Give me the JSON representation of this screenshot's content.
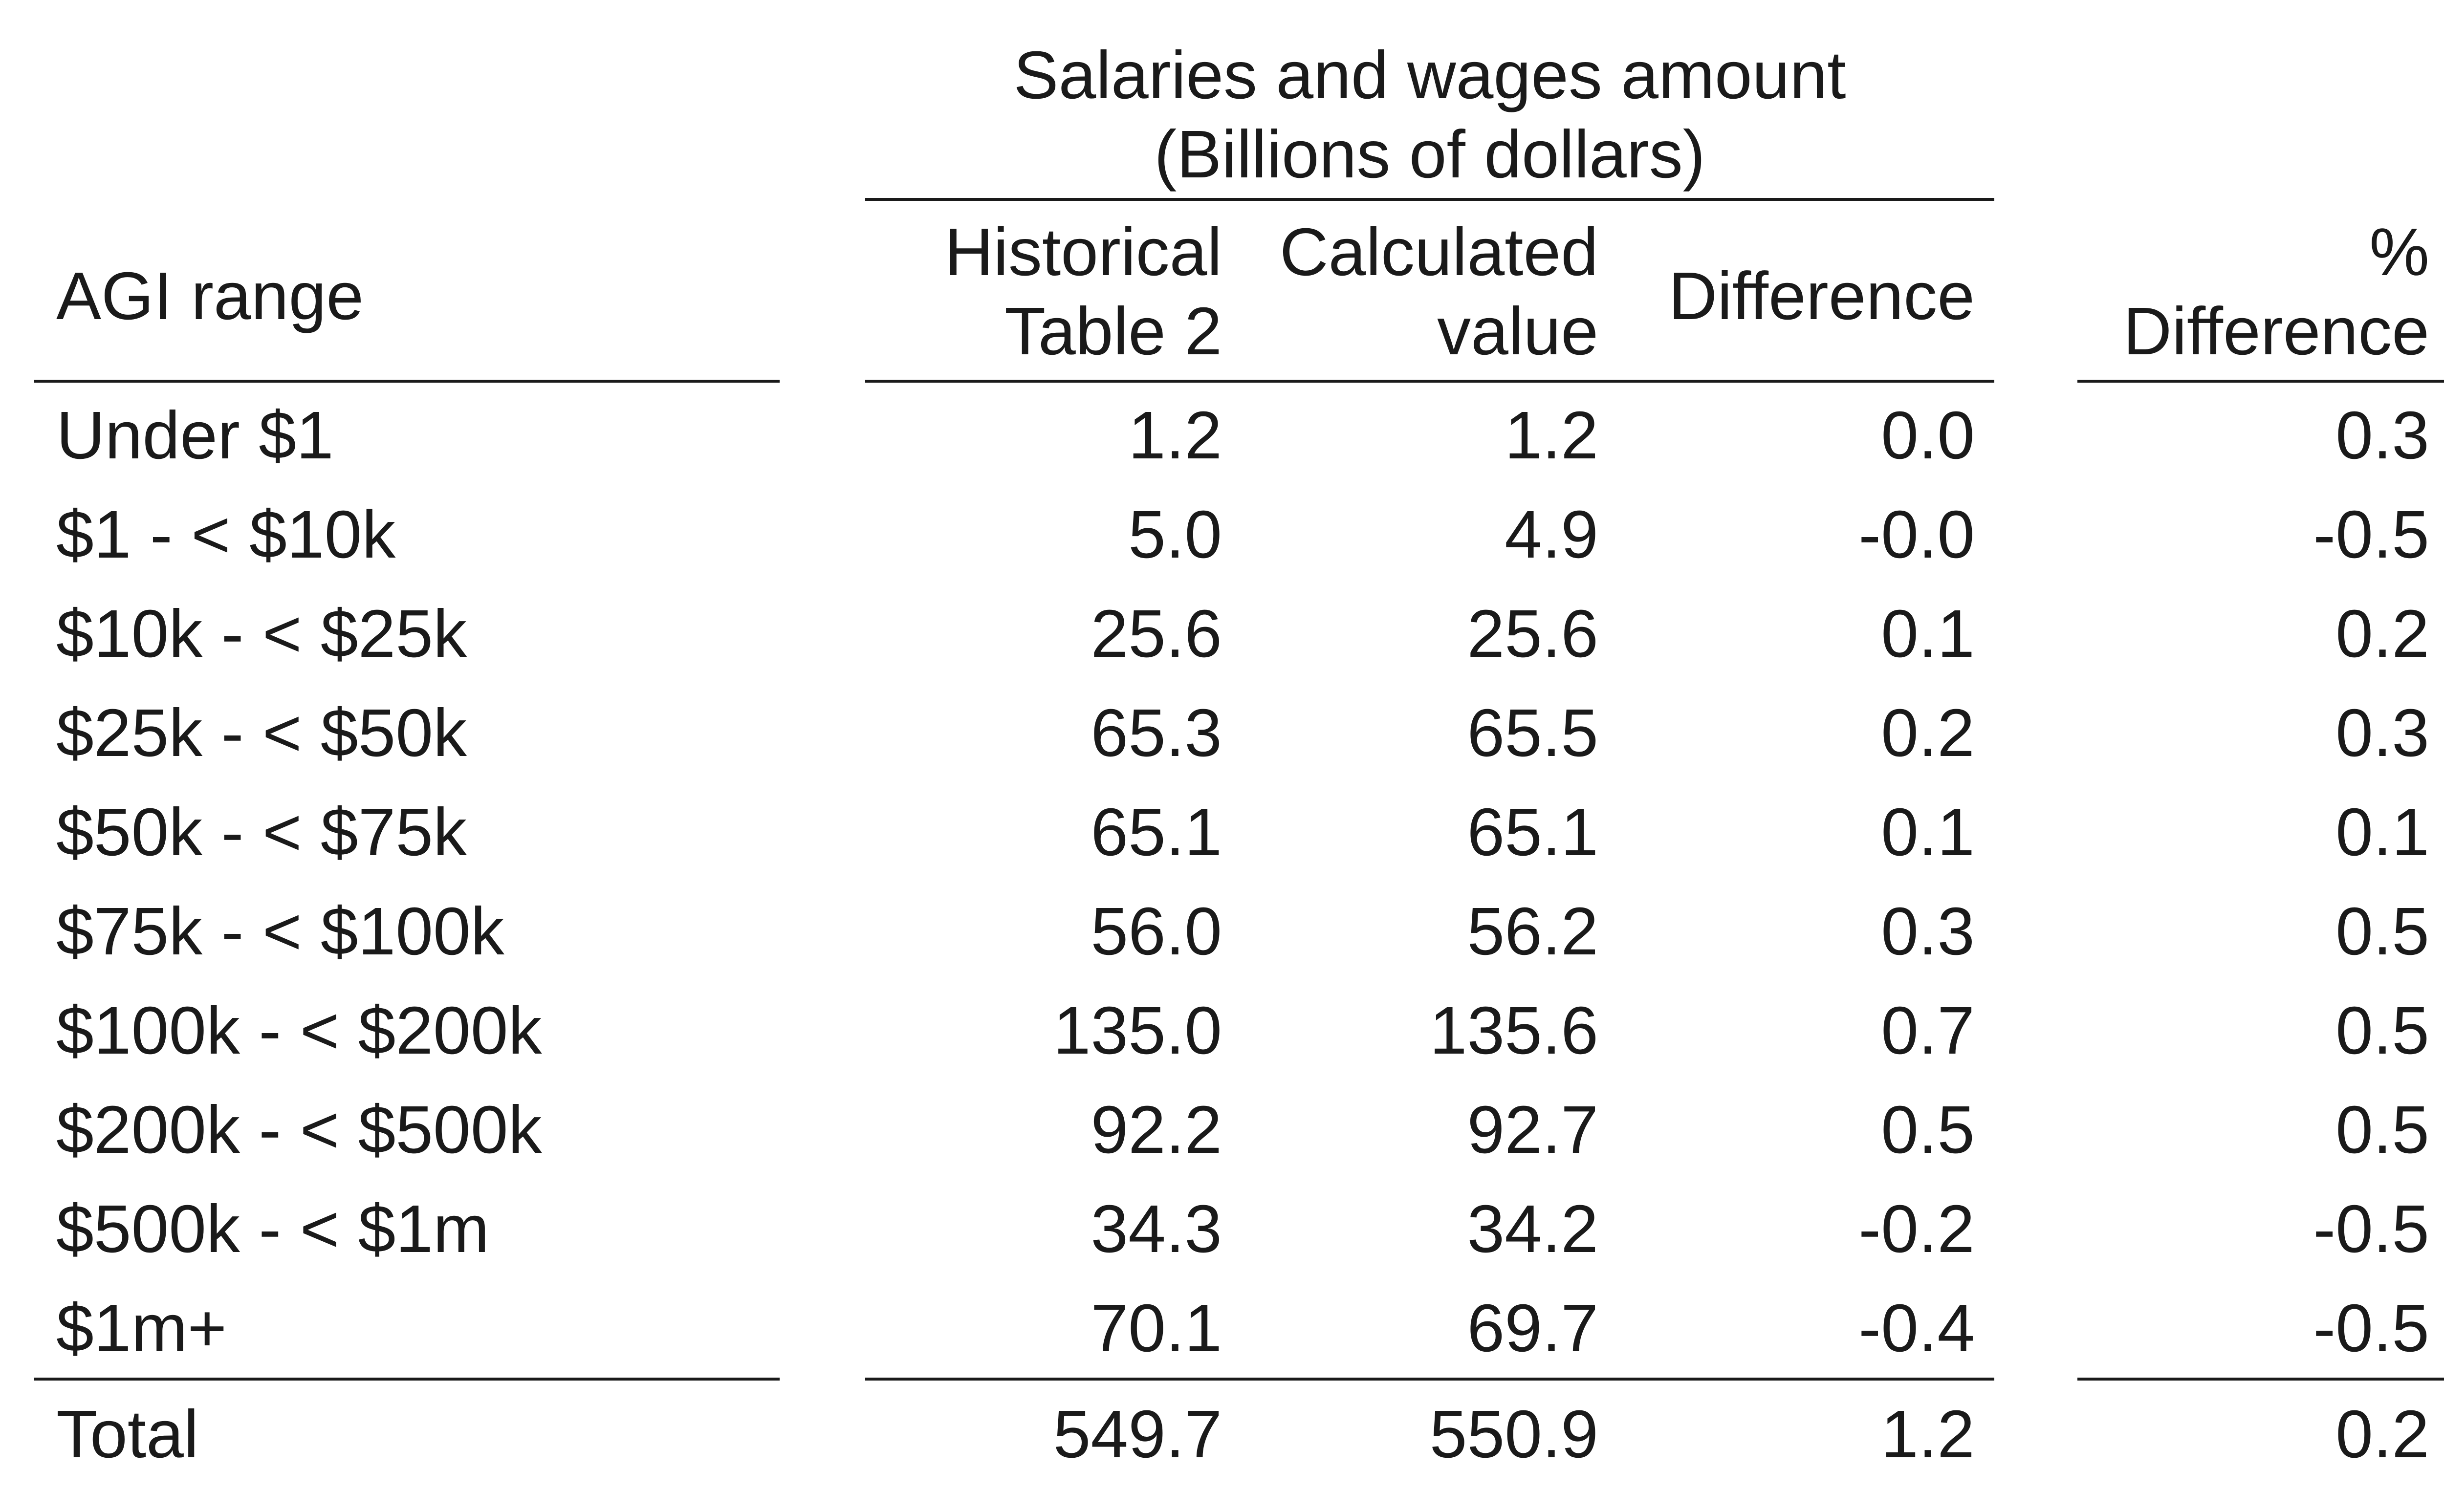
{
  "table": {
    "group_header": {
      "line1": "Salaries and wages amount",
      "line2": "(Billions of dollars)"
    },
    "columns": {
      "agi": "AGI range",
      "historical_line1": "Historical",
      "historical_line2": "Table 2",
      "calculated_line1": "Calculated",
      "calculated_line2": "value",
      "difference": "Difference",
      "pct_line1": "%",
      "pct_line2": "Difference"
    },
    "rows": [
      {
        "range": "Under $1",
        "historical": "1.2",
        "calculated": "1.2",
        "difference": "0.0",
        "pct": "0.3"
      },
      {
        "range": "$1 - < $10k",
        "historical": "5.0",
        "calculated": "4.9",
        "difference": "-0.0",
        "pct": "-0.5"
      },
      {
        "range": "$10k - < $25k",
        "historical": "25.6",
        "calculated": "25.6",
        "difference": "0.1",
        "pct": "0.2"
      },
      {
        "range": "$25k - < $50k",
        "historical": "65.3",
        "calculated": "65.5",
        "difference": "0.2",
        "pct": "0.3"
      },
      {
        "range": "$50k - < $75k",
        "historical": "65.1",
        "calculated": "65.1",
        "difference": "0.1",
        "pct": "0.1"
      },
      {
        "range": "$75k - < $100k",
        "historical": "56.0",
        "calculated": "56.2",
        "difference": "0.3",
        "pct": "0.5"
      },
      {
        "range": "$100k - < $200k",
        "historical": "135.0",
        "calculated": "135.6",
        "difference": "0.7",
        "pct": "0.5"
      },
      {
        "range": "$200k - < $500k",
        "historical": "92.2",
        "calculated": "92.7",
        "difference": "0.5",
        "pct": "0.5"
      },
      {
        "range": "$500k - < $1m",
        "historical": "34.3",
        "calculated": "34.2",
        "difference": "-0.2",
        "pct": "-0.5"
      },
      {
        "range": "$1m+",
        "historical": "70.1",
        "calculated": "69.7",
        "difference": "-0.4",
        "pct": "-0.5"
      }
    ],
    "total": {
      "range": "Total",
      "historical": "549.7",
      "calculated": "550.9",
      "difference": "1.2",
      "pct": "0.2"
    }
  }
}
